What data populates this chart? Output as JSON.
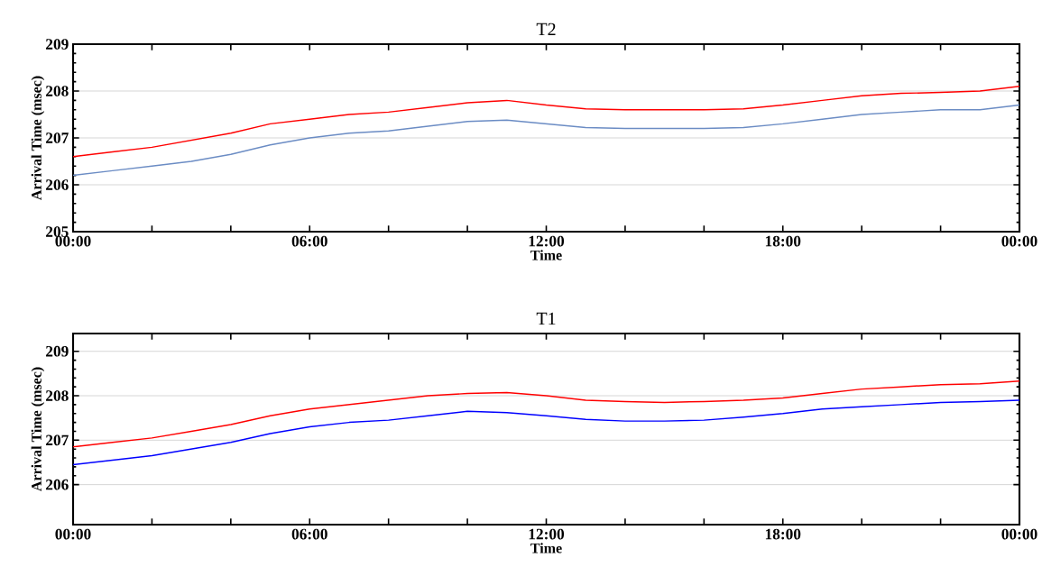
{
  "chart_data": [
    {
      "type": "line",
      "title": "T2",
      "xlabel": "Time",
      "ylabel": "Arrival Time (msec)",
      "x": [
        0,
        1,
        2,
        3,
        4,
        5,
        6,
        7,
        8,
        9,
        10,
        11,
        12,
        13,
        14,
        15,
        16,
        17,
        18,
        19,
        20,
        21,
        22,
        23,
        24
      ],
      "series": [
        {
          "color": "#ff0000",
          "values": [
            206.6,
            206.7,
            206.8,
            206.95,
            207.1,
            207.3,
            207.4,
            207.5,
            207.55,
            207.65,
            207.75,
            207.8,
            207.7,
            207.62,
            207.6,
            207.6,
            207.6,
            207.62,
            207.7,
            207.8,
            207.9,
            207.95,
            207.97,
            208.0,
            208.1
          ]
        },
        {
          "color": "#6b8cc4",
          "values": [
            206.2,
            206.3,
            206.4,
            206.5,
            206.65,
            206.85,
            207.0,
            207.1,
            207.15,
            207.25,
            207.35,
            207.38,
            207.3,
            207.22,
            207.2,
            207.2,
            207.2,
            207.22,
            207.3,
            207.4,
            207.5,
            207.55,
            207.6,
            207.6,
            207.7
          ]
        }
      ],
      "xlim": [
        0,
        24
      ],
      "xticks": [
        {
          "value": 0,
          "label": "00:00"
        },
        {
          "value": 2,
          "label": null
        },
        {
          "value": 4,
          "label": null
        },
        {
          "value": 6,
          "label": "06:00"
        },
        {
          "value": 8,
          "label": null
        },
        {
          "value": 10,
          "label": null
        },
        {
          "value": 12,
          "label": "12:00"
        },
        {
          "value": 14,
          "label": null
        },
        {
          "value": 16,
          "label": null
        },
        {
          "value": 18,
          "label": "18:00"
        },
        {
          "value": 20,
          "label": null
        },
        {
          "value": 22,
          "label": null
        },
        {
          "value": 24,
          "label": "00:00"
        }
      ],
      "ylim": [
        205,
        209
      ],
      "yticks": [
        205,
        206,
        207,
        208,
        209
      ],
      "grid": "y",
      "line_style": "solid"
    },
    {
      "type": "line",
      "title": "T1",
      "xlabel": "Time",
      "ylabel": "Arrival Time (msec)",
      "x": [
        0,
        1,
        2,
        3,
        4,
        5,
        6,
        7,
        8,
        9,
        10,
        11,
        12,
        13,
        14,
        15,
        16,
        17,
        18,
        19,
        20,
        21,
        22,
        23,
        24
      ],
      "series": [
        {
          "color": "#ff0000",
          "values": [
            206.85,
            206.95,
            207.05,
            207.2,
            207.35,
            207.55,
            207.7,
            207.8,
            207.9,
            208.0,
            208.05,
            208.07,
            208.0,
            207.9,
            207.87,
            207.85,
            207.87,
            207.9,
            207.95,
            208.05,
            208.15,
            208.2,
            208.25,
            208.27,
            208.33
          ]
        },
        {
          "color": "#0000ff",
          "values": [
            206.45,
            206.55,
            206.65,
            206.8,
            206.95,
            207.15,
            207.3,
            207.4,
            207.45,
            207.55,
            207.65,
            207.62,
            207.55,
            207.47,
            207.43,
            207.43,
            207.45,
            207.52,
            207.6,
            207.7,
            207.75,
            207.8,
            207.85,
            207.87,
            207.9
          ]
        }
      ],
      "xlim": [
        0,
        24
      ],
      "xticks": [
        {
          "value": 0,
          "label": "00:00"
        },
        {
          "value": 2,
          "label": null
        },
        {
          "value": 4,
          "label": null
        },
        {
          "value": 6,
          "label": "06:00"
        },
        {
          "value": 8,
          "label": null
        },
        {
          "value": 10,
          "label": null
        },
        {
          "value": 12,
          "label": "12:00"
        },
        {
          "value": 14,
          "label": null
        },
        {
          "value": 16,
          "label": null
        },
        {
          "value": 18,
          "label": "18:00"
        },
        {
          "value": 20,
          "label": null
        },
        {
          "value": 22,
          "label": null
        },
        {
          "value": 24,
          "label": "00:00"
        }
      ],
      "ylim": [
        205.1,
        209.4
      ],
      "yticks": [
        206,
        207,
        208,
        209
      ],
      "grid": "y",
      "line_style": "solid"
    }
  ]
}
